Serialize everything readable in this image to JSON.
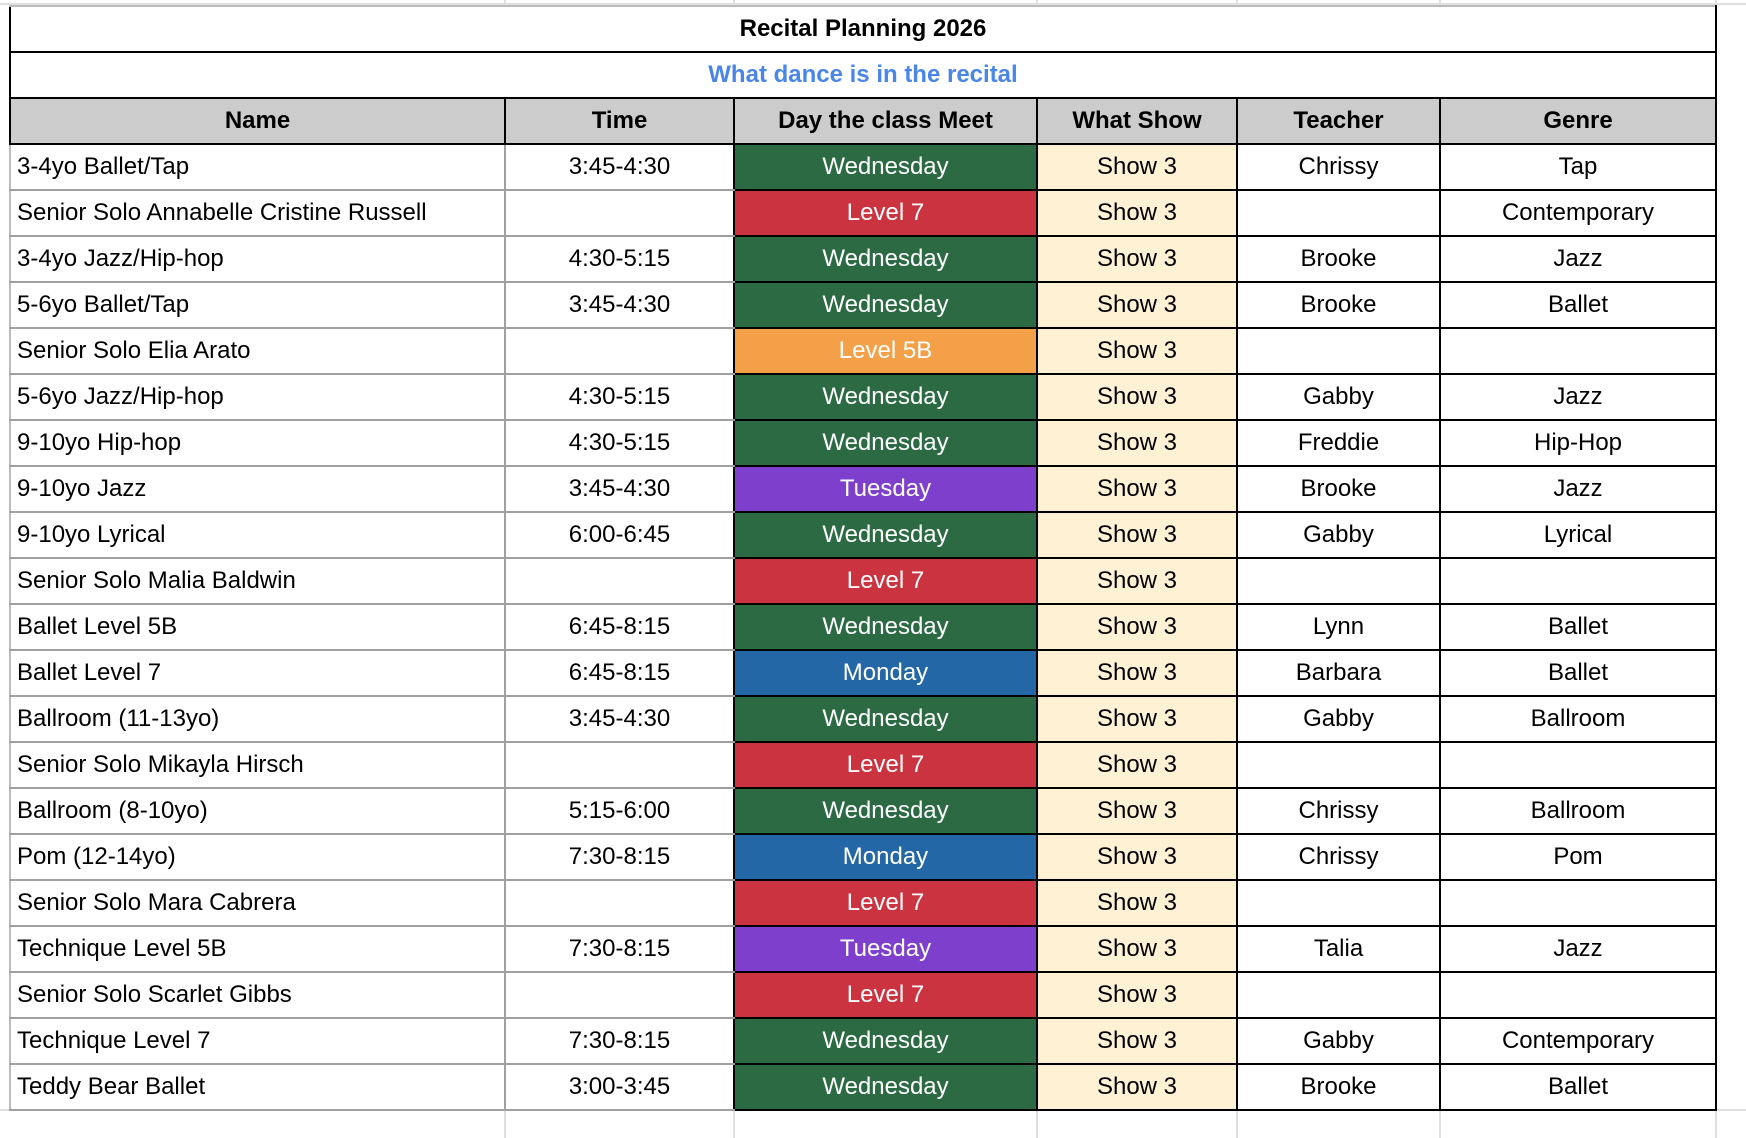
{
  "title": "Recital Planning 2026",
  "subtitle": "What dance is in the recital",
  "colors": {
    "Wednesday": "#2b6a43",
    "Monday": "#2467a6",
    "Tuesday": "#7e3fcc",
    "Level 7": "#cc3340",
    "Level 5B": "#f3a048",
    "header": "#cccccc",
    "show": "#fff2d4",
    "subtitle": "#4a86e8"
  },
  "headers": [
    "Name",
    "Time",
    "Day the class Meet",
    "What Show",
    "Teacher",
    "Genre"
  ],
  "rows": [
    [
      "3-4yo Ballet/Tap",
      "3:45-4:30",
      "Wednesday",
      "Show 3",
      "Chrissy",
      "Tap"
    ],
    [
      "Senior Solo Annabelle Cristine Russell",
      "",
      "Level 7",
      "Show 3",
      "",
      "Contemporary"
    ],
    [
      "3-4yo Jazz/Hip-hop",
      "4:30-5:15",
      "Wednesday",
      "Show 3",
      "Brooke",
      "Jazz"
    ],
    [
      "5-6yo Ballet/Tap",
      "3:45-4:30",
      "Wednesday",
      "Show 3",
      "Brooke",
      "Ballet"
    ],
    [
      "Senior Solo Elia Arato",
      "",
      "Level 5B",
      "Show 3",
      "",
      ""
    ],
    [
      "5-6yo Jazz/Hip-hop",
      "4:30-5:15",
      "Wednesday",
      "Show 3",
      "Gabby",
      "Jazz"
    ],
    [
      "9-10yo Hip-hop",
      "4:30-5:15",
      "Wednesday",
      "Show 3",
      "Freddie",
      "Hip-Hop"
    ],
    [
      "9-10yo Jazz",
      "3:45-4:30",
      "Tuesday",
      "Show 3",
      "Brooke",
      "Jazz"
    ],
    [
      "9-10yo Lyrical",
      "6:00-6:45",
      "Wednesday",
      "Show 3",
      "Gabby",
      "Lyrical"
    ],
    [
      "Senior Solo Malia Baldwin",
      "",
      "Level 7",
      "Show 3",
      "",
      ""
    ],
    [
      "Ballet Level 5B",
      "6:45-8:15",
      "Wednesday",
      "Show 3",
      "Lynn",
      "Ballet"
    ],
    [
      "Ballet Level 7",
      "6:45-8:15",
      "Monday",
      "Show 3",
      "Barbara",
      "Ballet"
    ],
    [
      "Ballroom (11-13yo)",
      "3:45-4:30",
      "Wednesday",
      "Show 3",
      "Gabby",
      "Ballroom"
    ],
    [
      "Senior Solo Mikayla Hirsch",
      "",
      "Level 7",
      "Show 3",
      "",
      ""
    ],
    [
      "Ballroom (8-10yo)",
      "5:15-6:00",
      "Wednesday",
      "Show 3",
      "Chrissy",
      "Ballroom"
    ],
    [
      "Pom (12-14yo)",
      "7:30-8:15",
      "Monday",
      "Show 3",
      "Chrissy",
      "Pom"
    ],
    [
      "Senior Solo Mara Cabrera",
      "",
      "Level 7",
      "Show 3",
      "",
      ""
    ],
    [
      "Technique Level 5B",
      "7:30-8:15",
      "Tuesday",
      "Show 3",
      "Talia",
      "Jazz"
    ],
    [
      "Senior Solo Scarlet Gibbs",
      "",
      "Level 7",
      "Show 3",
      "",
      ""
    ],
    [
      "Technique Level 7",
      "7:30-8:15",
      "Wednesday",
      "Show 3",
      "Gabby",
      "Contemporary"
    ],
    [
      "Teddy Bear Ballet",
      "3:00-3:45",
      "Wednesday",
      "Show 3",
      "Brooke",
      "Ballet"
    ]
  ]
}
